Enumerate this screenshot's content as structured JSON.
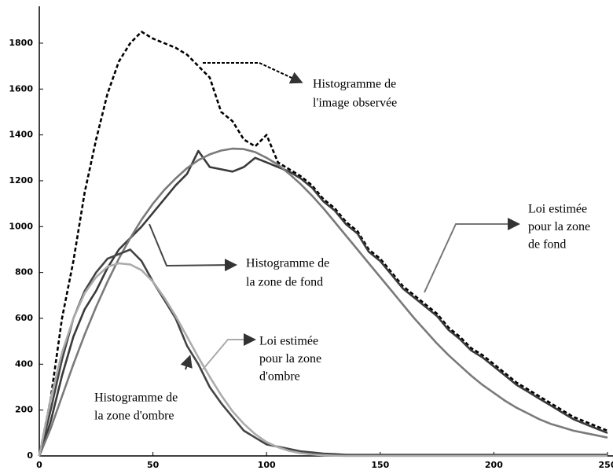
{
  "chart_data": {
    "type": "line",
    "x": [
      0,
      5,
      10,
      15,
      20,
      25,
      30,
      35,
      40,
      45,
      50,
      55,
      60,
      65,
      70,
      75,
      80,
      85,
      90,
      95,
      100,
      105,
      110,
      115,
      120,
      125,
      130,
      135,
      140,
      145,
      150,
      155,
      160,
      165,
      170,
      175,
      180,
      185,
      190,
      195,
      200,
      205,
      210,
      215,
      220,
      225,
      230,
      235,
      240,
      245,
      250
    ],
    "series": [
      {
        "color": "#000000",
        "style": "dashed",
        "values": [
          0,
          250,
          600,
          850,
          1150,
          1380,
          1580,
          1720,
          1800,
          1850,
          1820,
          1800,
          1780,
          1750,
          1700,
          1650,
          1500,
          1460,
          1380,
          1350,
          1400,
          1280,
          1250,
          1220,
          1180,
          1120,
          1080,
          1020,
          980,
          900,
          860,
          800,
          740,
          700,
          660,
          620,
          560,
          520,
          470,
          440,
          400,
          360,
          320,
          290,
          260,
          230,
          200,
          170,
          150,
          130,
          110
        ]
      },
      {
        "color": "#3a3a3a",
        "style": "solid",
        "values": [
          0,
          150,
          350,
          520,
          640,
          720,
          820,
          900,
          950,
          1000,
          1060,
          1120,
          1180,
          1230,
          1330,
          1260,
          1250,
          1240,
          1260,
          1300,
          1280,
          1260,
          1240,
          1210,
          1170,
          1110,
          1070,
          1010,
          970,
          890,
          850,
          790,
          730,
          690,
          650,
          610,
          550,
          510,
          460,
          430,
          390,
          350,
          310,
          280,
          250,
          220,
          190,
          160,
          140,
          120,
          100
        ]
      },
      {
        "color": "#7a7a7a",
        "style": "solid",
        "values": [
          0,
          120,
          260,
          400,
          530,
          650,
          760,
          860,
          950,
          1030,
          1100,
          1160,
          1210,
          1255,
          1290,
          1315,
          1332,
          1340,
          1338,
          1325,
          1300,
          1270,
          1230,
          1185,
          1135,
          1080,
          1020,
          960,
          900,
          840,
          780,
          720,
          660,
          600,
          545,
          490,
          440,
          395,
          350,
          310,
          275,
          240,
          210,
          185,
          160,
          140,
          125,
          110,
          100,
          90,
          80
        ]
      },
      {
        "color": "#444444",
        "style": "solid",
        "values": [
          0,
          200,
          420,
          600,
          720,
          800,
          860,
          880,
          900,
          850,
          760,
          680,
          600,
          480,
          400,
          300,
          230,
          170,
          110,
          80,
          50,
          40,
          30,
          20,
          15,
          10,
          8,
          5,
          5,
          5,
          5,
          5,
          5,
          5,
          5,
          5,
          5,
          5,
          5,
          5,
          5,
          5,
          5,
          5,
          5,
          5,
          5,
          5,
          5,
          5,
          5
        ]
      },
      {
        "color": "#ababab",
        "style": "solid",
        "values": [
          0,
          250,
          450,
          600,
          710,
          780,
          825,
          840,
          835,
          810,
          760,
          690,
          610,
          520,
          430,
          345,
          265,
          195,
          140,
          95,
          60,
          38,
          22,
          12,
          6,
          3,
          1,
          0,
          0,
          0,
          0,
          0,
          0,
          0,
          0,
          0,
          0,
          0,
          0,
          0,
          0,
          0,
          0,
          0,
          0,
          0,
          0,
          0,
          0,
          0,
          0
        ]
      }
    ],
    "annotations": [
      {
        "lines": [
          "Histogramme de",
          "l'image observée"
        ]
      },
      {
        "lines": [
          "Histogramme de",
          "la zone de fond"
        ]
      },
      {
        "lines": [
          "Loi estimée",
          "pour la zone",
          "de fond"
        ]
      },
      {
        "lines": [
          "Loi estimée",
          "pour la zone",
          "d'ombre"
        ]
      },
      {
        "lines": [
          "Histogramme de",
          "la zone d'ombre"
        ]
      }
    ],
    "xlim": [
      0,
      252
    ],
    "ylim": [
      0,
      1950
    ],
    "xticks": [
      0,
      50,
      100,
      150,
      200,
      250
    ],
    "yticks": [
      0,
      200,
      400,
      600,
      800,
      1000,
      1200,
      1400,
      1600,
      1800
    ]
  }
}
